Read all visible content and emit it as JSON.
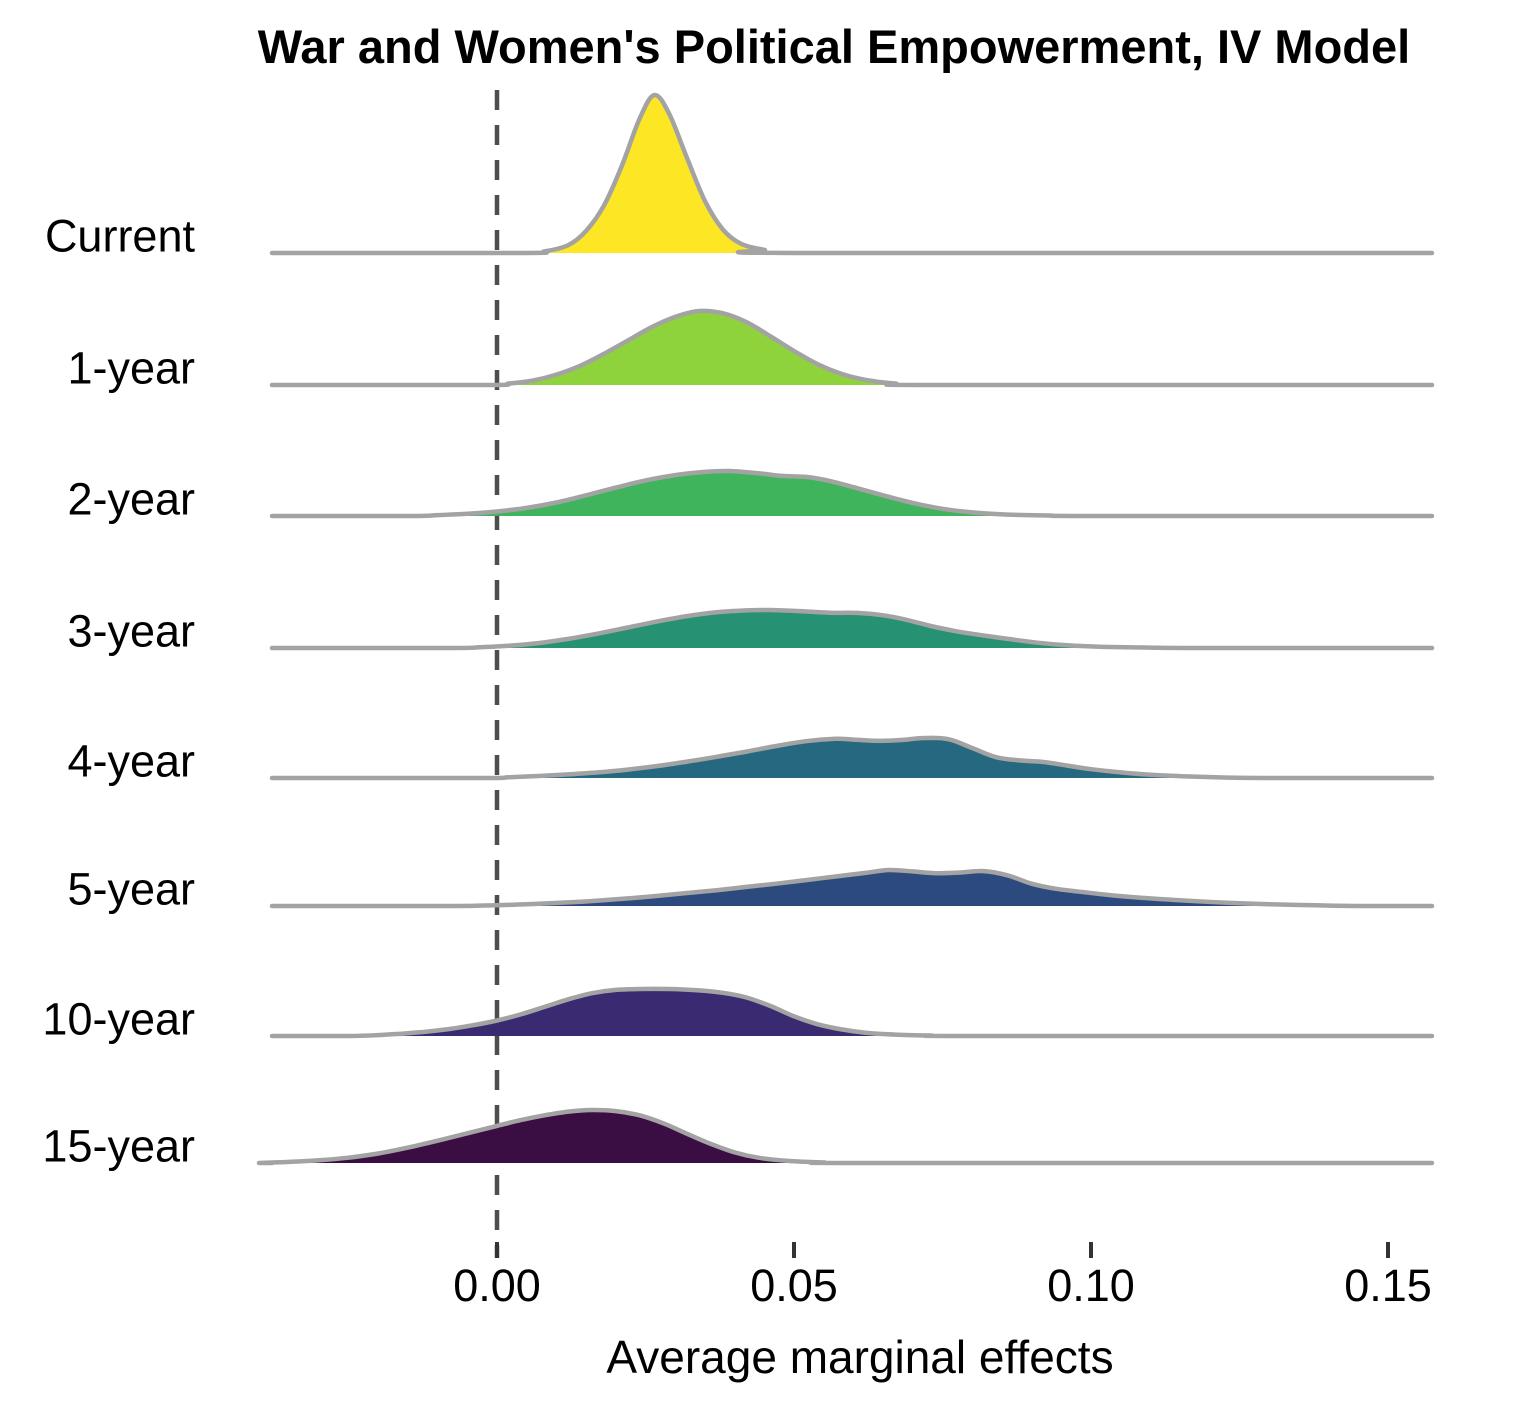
{
  "chart_data": {
    "type": "area",
    "variant": "ridgeline-density",
    "title": "War and Women's Political Empowerment, IV Model",
    "xlabel": "Average marginal effects",
    "ylabel": "",
    "grid": "off",
    "legend": "none",
    "x_range": [
      -0.038,
      0.157
    ],
    "zero_reference_line": 0,
    "x_ticks": [
      {
        "value": 0.0,
        "label": "0.00"
      },
      {
        "value": 0.05,
        "label": "0.05"
      },
      {
        "value": 0.1,
        "label": "0.10"
      },
      {
        "value": 0.15,
        "label": "0.15"
      }
    ],
    "categories": [
      "Current",
      "1-year",
      "2-year",
      "3-year",
      "4-year",
      "5-year",
      "10-year",
      "15-year"
    ],
    "series": [
      {
        "label": "Current",
        "color": "#fde725",
        "peak": 158,
        "mode": 0.027,
        "points": [
          [
            0.004,
            0
          ],
          [
            0.008,
            0.01
          ],
          [
            0.012,
            0.05
          ],
          [
            0.015,
            0.14
          ],
          [
            0.018,
            0.3
          ],
          [
            0.021,
            0.55
          ],
          [
            0.024,
            0.85
          ],
          [
            0.0265,
            1.0
          ],
          [
            0.029,
            0.88
          ],
          [
            0.032,
            0.6
          ],
          [
            0.035,
            0.33
          ],
          [
            0.038,
            0.15
          ],
          [
            0.041,
            0.06
          ],
          [
            0.045,
            0.02
          ],
          [
            0.05,
            0
          ]
        ]
      },
      {
        "label": "1-year",
        "color": "#8ed33c",
        "peak": 74,
        "mode": 0.034,
        "points": [
          [
            -0.002,
            0
          ],
          [
            0.002,
            0.02
          ],
          [
            0.006,
            0.06
          ],
          [
            0.01,
            0.14
          ],
          [
            0.014,
            0.26
          ],
          [
            0.018,
            0.42
          ],
          [
            0.022,
            0.6
          ],
          [
            0.026,
            0.78
          ],
          [
            0.03,
            0.92
          ],
          [
            0.034,
            1.0
          ],
          [
            0.038,
            0.97
          ],
          [
            0.042,
            0.85
          ],
          [
            0.046,
            0.66
          ],
          [
            0.05,
            0.46
          ],
          [
            0.054,
            0.28
          ],
          [
            0.058,
            0.15
          ],
          [
            0.062,
            0.07
          ],
          [
            0.067,
            0.02
          ],
          [
            0.074,
            0
          ]
        ]
      },
      {
        "label": "2-year",
        "color": "#3fb45c",
        "peak": 45,
        "mode": 0.04,
        "points": [
          [
            -0.015,
            0
          ],
          [
            -0.01,
            0.02
          ],
          [
            -0.005,
            0.05
          ],
          [
            0.0,
            0.1
          ],
          [
            0.005,
            0.18
          ],
          [
            0.01,
            0.3
          ],
          [
            0.015,
            0.46
          ],
          [
            0.02,
            0.63
          ],
          [
            0.025,
            0.79
          ],
          [
            0.03,
            0.91
          ],
          [
            0.035,
            0.98
          ],
          [
            0.039,
            1.0
          ],
          [
            0.044,
            0.95
          ],
          [
            0.048,
            0.89
          ],
          [
            0.052,
            0.87
          ],
          [
            0.056,
            0.78
          ],
          [
            0.06,
            0.64
          ],
          [
            0.065,
            0.46
          ],
          [
            0.07,
            0.29
          ],
          [
            0.075,
            0.16
          ],
          [
            0.08,
            0.08
          ],
          [
            0.086,
            0.03
          ],
          [
            0.093,
            0.01
          ],
          [
            0.1,
            0
          ]
        ]
      },
      {
        "label": "3-year",
        "color": "#269173",
        "peak": 38,
        "mode": 0.047,
        "points": [
          [
            -0.008,
            0
          ],
          [
            -0.003,
            0.02
          ],
          [
            0.002,
            0.06
          ],
          [
            0.007,
            0.13
          ],
          [
            0.012,
            0.24
          ],
          [
            0.017,
            0.38
          ],
          [
            0.022,
            0.54
          ],
          [
            0.027,
            0.7
          ],
          [
            0.032,
            0.84
          ],
          [
            0.037,
            0.94
          ],
          [
            0.042,
            0.99
          ],
          [
            0.046,
            1.0
          ],
          [
            0.051,
            0.97
          ],
          [
            0.056,
            0.93
          ],
          [
            0.061,
            0.92
          ],
          [
            0.065,
            0.86
          ],
          [
            0.069,
            0.74
          ],
          [
            0.073,
            0.58
          ],
          [
            0.077,
            0.45
          ],
          [
            0.081,
            0.35
          ],
          [
            0.086,
            0.24
          ],
          [
            0.091,
            0.14
          ],
          [
            0.096,
            0.07
          ],
          [
            0.102,
            0.03
          ],
          [
            0.11,
            0.01
          ],
          [
            0.118,
            0
          ]
        ]
      },
      {
        "label": "4-year",
        "color": "#25687f",
        "peak": 40,
        "mode": 0.066,
        "points": [
          [
            -0.003,
            0
          ],
          [
            0.002,
            0.02
          ],
          [
            0.007,
            0.05
          ],
          [
            0.012,
            0.09
          ],
          [
            0.017,
            0.14
          ],
          [
            0.022,
            0.21
          ],
          [
            0.027,
            0.3
          ],
          [
            0.032,
            0.41
          ],
          [
            0.037,
            0.53
          ],
          [
            0.042,
            0.66
          ],
          [
            0.047,
            0.8
          ],
          [
            0.052,
            0.92
          ],
          [
            0.057,
            0.98
          ],
          [
            0.06,
            0.96
          ],
          [
            0.064,
            0.93
          ],
          [
            0.068,
            0.95
          ],
          [
            0.072,
            1.0
          ],
          [
            0.076,
            0.97
          ],
          [
            0.08,
            0.75
          ],
          [
            0.084,
            0.52
          ],
          [
            0.088,
            0.44
          ],
          [
            0.092,
            0.4
          ],
          [
            0.096,
            0.31
          ],
          [
            0.1,
            0.22
          ],
          [
            0.105,
            0.14
          ],
          [
            0.11,
            0.08
          ],
          [
            0.116,
            0.04
          ],
          [
            0.123,
            0.01
          ],
          [
            0.131,
            0
          ]
        ]
      },
      {
        "label": "5-year",
        "color": "#2d4a7e",
        "peak": 36,
        "mode": 0.072,
        "points": [
          [
            -0.008,
            0
          ],
          [
            -0.003,
            0.01
          ],
          [
            0.002,
            0.03
          ],
          [
            0.007,
            0.06
          ],
          [
            0.012,
            0.1
          ],
          [
            0.017,
            0.15
          ],
          [
            0.022,
            0.21
          ],
          [
            0.027,
            0.28
          ],
          [
            0.032,
            0.36
          ],
          [
            0.037,
            0.44
          ],
          [
            0.042,
            0.53
          ],
          [
            0.047,
            0.62
          ],
          [
            0.052,
            0.72
          ],
          [
            0.057,
            0.82
          ],
          [
            0.062,
            0.92
          ],
          [
            0.066,
            1.0
          ],
          [
            0.07,
            0.96
          ],
          [
            0.074,
            0.91
          ],
          [
            0.078,
            0.93
          ],
          [
            0.082,
            0.97
          ],
          [
            0.086,
            0.85
          ],
          [
            0.09,
            0.62
          ],
          [
            0.094,
            0.48
          ],
          [
            0.099,
            0.38
          ],
          [
            0.104,
            0.29
          ],
          [
            0.11,
            0.21
          ],
          [
            0.116,
            0.15
          ],
          [
            0.123,
            0.09
          ],
          [
            0.13,
            0.05
          ],
          [
            0.138,
            0.02
          ],
          [
            0.146,
            0
          ]
        ]
      },
      {
        "label": "10-year",
        "color": "#3a2a72",
        "peak": 47,
        "mode": 0.03,
        "points": [
          [
            -0.025,
            0
          ],
          [
            -0.02,
            0.02
          ],
          [
            -0.016,
            0.05
          ],
          [
            -0.012,
            0.09
          ],
          [
            -0.008,
            0.15
          ],
          [
            -0.004,
            0.23
          ],
          [
            0.0,
            0.33
          ],
          [
            0.004,
            0.46
          ],
          [
            0.008,
            0.62
          ],
          [
            0.012,
            0.78
          ],
          [
            0.016,
            0.91
          ],
          [
            0.02,
            0.98
          ],
          [
            0.024,
            1.0
          ],
          [
            0.029,
            1.0
          ],
          [
            0.034,
            0.97
          ],
          [
            0.038,
            0.92
          ],
          [
            0.042,
            0.82
          ],
          [
            0.046,
            0.64
          ],
          [
            0.05,
            0.42
          ],
          [
            0.054,
            0.25
          ],
          [
            0.058,
            0.14
          ],
          [
            0.062,
            0.07
          ],
          [
            0.067,
            0.03
          ],
          [
            0.073,
            0.01
          ],
          [
            0.08,
            0
          ]
        ]
      },
      {
        "label": "15-year",
        "color": "#3a0d43",
        "peak": 53,
        "mode": 0.017,
        "points": [
          [
            -0.04,
            0
          ],
          [
            -0.035,
            0.02
          ],
          [
            -0.03,
            0.05
          ],
          [
            -0.025,
            0.1
          ],
          [
            -0.02,
            0.18
          ],
          [
            -0.015,
            0.29
          ],
          [
            -0.01,
            0.42
          ],
          [
            -0.005,
            0.56
          ],
          [
            0.0,
            0.7
          ],
          [
            0.004,
            0.81
          ],
          [
            0.008,
            0.9
          ],
          [
            0.012,
            0.97
          ],
          [
            0.016,
            1.0
          ],
          [
            0.02,
            0.98
          ],
          [
            0.024,
            0.9
          ],
          [
            0.028,
            0.75
          ],
          [
            0.032,
            0.55
          ],
          [
            0.036,
            0.36
          ],
          [
            0.04,
            0.2
          ],
          [
            0.044,
            0.1
          ],
          [
            0.049,
            0.04
          ],
          [
            0.055,
            0.01
          ],
          [
            0.062,
            0
          ]
        ]
      }
    ]
  },
  "colors": {
    "outline": "#a3a3a3",
    "dashed_line": "#4d4d4d",
    "tick": "#333333",
    "text": "#000000",
    "background": "#ffffff"
  }
}
